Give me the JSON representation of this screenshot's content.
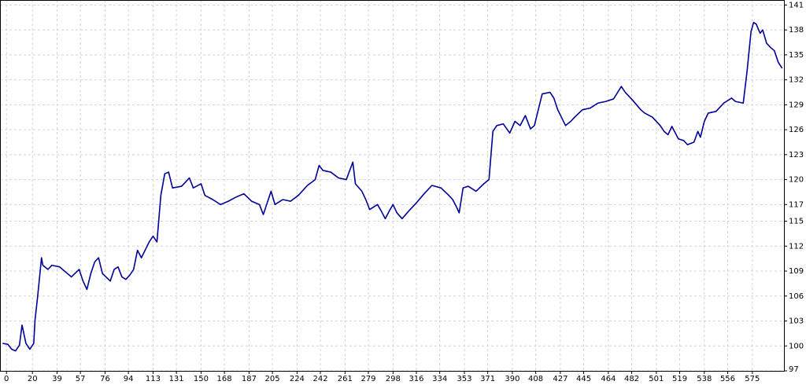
{
  "chart_data": {
    "type": "line",
    "x": [
      -3,
      1,
      4,
      7,
      10,
      12,
      15,
      18,
      21,
      22,
      24,
      27,
      28,
      32,
      35,
      41,
      47,
      50,
      56,
      59,
      62,
      65,
      68,
      71,
      74,
      80,
      83,
      86,
      89,
      92,
      95,
      98,
      101,
      104,
      110,
      113,
      116,
      119,
      122,
      125,
      128,
      135,
      141,
      144,
      150,
      153,
      159,
      165,
      171,
      177,
      183,
      189,
      195,
      198,
      201,
      204,
      207,
      213,
      219,
      225,
      232,
      238,
      241,
      244,
      250,
      256,
      262,
      267,
      269,
      274,
      277,
      280,
      286,
      289,
      292,
      295,
      298,
      301,
      305,
      310,
      316,
      322,
      328,
      335,
      341,
      344,
      347,
      349,
      352,
      356,
      362,
      368,
      372,
      375,
      378,
      383,
      388,
      392,
      396,
      400,
      404,
      407,
      410,
      413,
      419,
      422,
      425,
      431,
      435,
      438,
      444,
      450,
      456,
      462,
      468,
      474,
      477,
      483,
      489,
      492,
      498,
      504,
      507,
      510,
      513,
      518,
      522,
      525,
      530,
      533,
      535,
      538,
      541,
      547,
      553,
      559,
      562,
      568,
      571,
      574,
      576,
      578,
      581,
      583,
      586,
      589,
      592,
      595,
      598
    ],
    "series": [
      {
        "color": "#000099",
        "values": [
          100.3,
          100.2,
          99.6,
          99.4,
          100.1,
          102.5,
          100.3,
          99.6,
          100.3,
          103.1,
          105.9,
          110.6,
          109.7,
          109.2,
          109.7,
          109.5,
          108.7,
          108.3,
          109.2,
          107.8,
          106.8,
          108.7,
          110.1,
          110.6,
          108.7,
          107.8,
          109.2,
          109.5,
          108.3,
          108.0,
          108.5,
          109.2,
          111.5,
          110.6,
          112.5,
          113.2,
          112.5,
          118.1,
          120.7,
          120.9,
          119.0,
          119.2,
          120.2,
          119.0,
          119.5,
          118.1,
          117.6,
          117.0,
          117.4,
          117.9,
          118.3,
          117.4,
          117.0,
          115.8,
          117.2,
          118.6,
          117.0,
          117.6,
          117.4,
          118.1,
          119.3,
          120.0,
          121.7,
          121.1,
          120.9,
          120.2,
          120.0,
          122.1,
          119.5,
          118.6,
          117.6,
          116.4,
          117.0,
          116.2,
          115.3,
          116.2,
          117.0,
          116.0,
          115.3,
          116.2,
          117.2,
          118.3,
          119.3,
          119.0,
          118.1,
          117.6,
          116.7,
          116.0,
          119.0,
          119.2,
          118.6,
          119.5,
          120.0,
          125.8,
          126.5,
          126.7,
          125.6,
          127.0,
          126.5,
          127.7,
          126.1,
          126.5,
          128.4,
          130.3,
          130.5,
          129.8,
          128.4,
          126.5,
          127.0,
          127.5,
          128.4,
          128.6,
          129.2,
          129.4,
          129.7,
          131.2,
          130.5,
          129.5,
          128.4,
          128.0,
          127.5,
          126.5,
          125.8,
          125.4,
          126.4,
          124.9,
          124.7,
          124.2,
          124.5,
          125.8,
          125.1,
          127.0,
          128.0,
          128.2,
          129.2,
          129.8,
          129.4,
          129.2,
          133.1,
          137.8,
          138.9,
          138.7,
          137.6,
          138.0,
          136.4,
          135.9,
          135.5,
          134.1,
          133.4
        ]
      }
    ],
    "xlim": [
      -5,
      600
    ],
    "xticks": [
      0,
      20,
      39,
      57,
      76,
      94,
      113,
      131,
      150,
      168,
      187,
      205,
      224,
      242,
      261,
      279,
      298,
      316,
      334,
      353,
      371,
      390,
      408,
      427,
      445,
      464,
      482,
      501,
      519,
      538,
      556,
      575
    ],
    "ylim": [
      97,
      141.6
    ],
    "yticks": [
      141,
      138,
      135,
      132,
      129,
      126,
      123,
      120,
      117,
      115,
      112,
      109,
      106,
      103,
      100,
      97
    ],
    "grid": true
  }
}
